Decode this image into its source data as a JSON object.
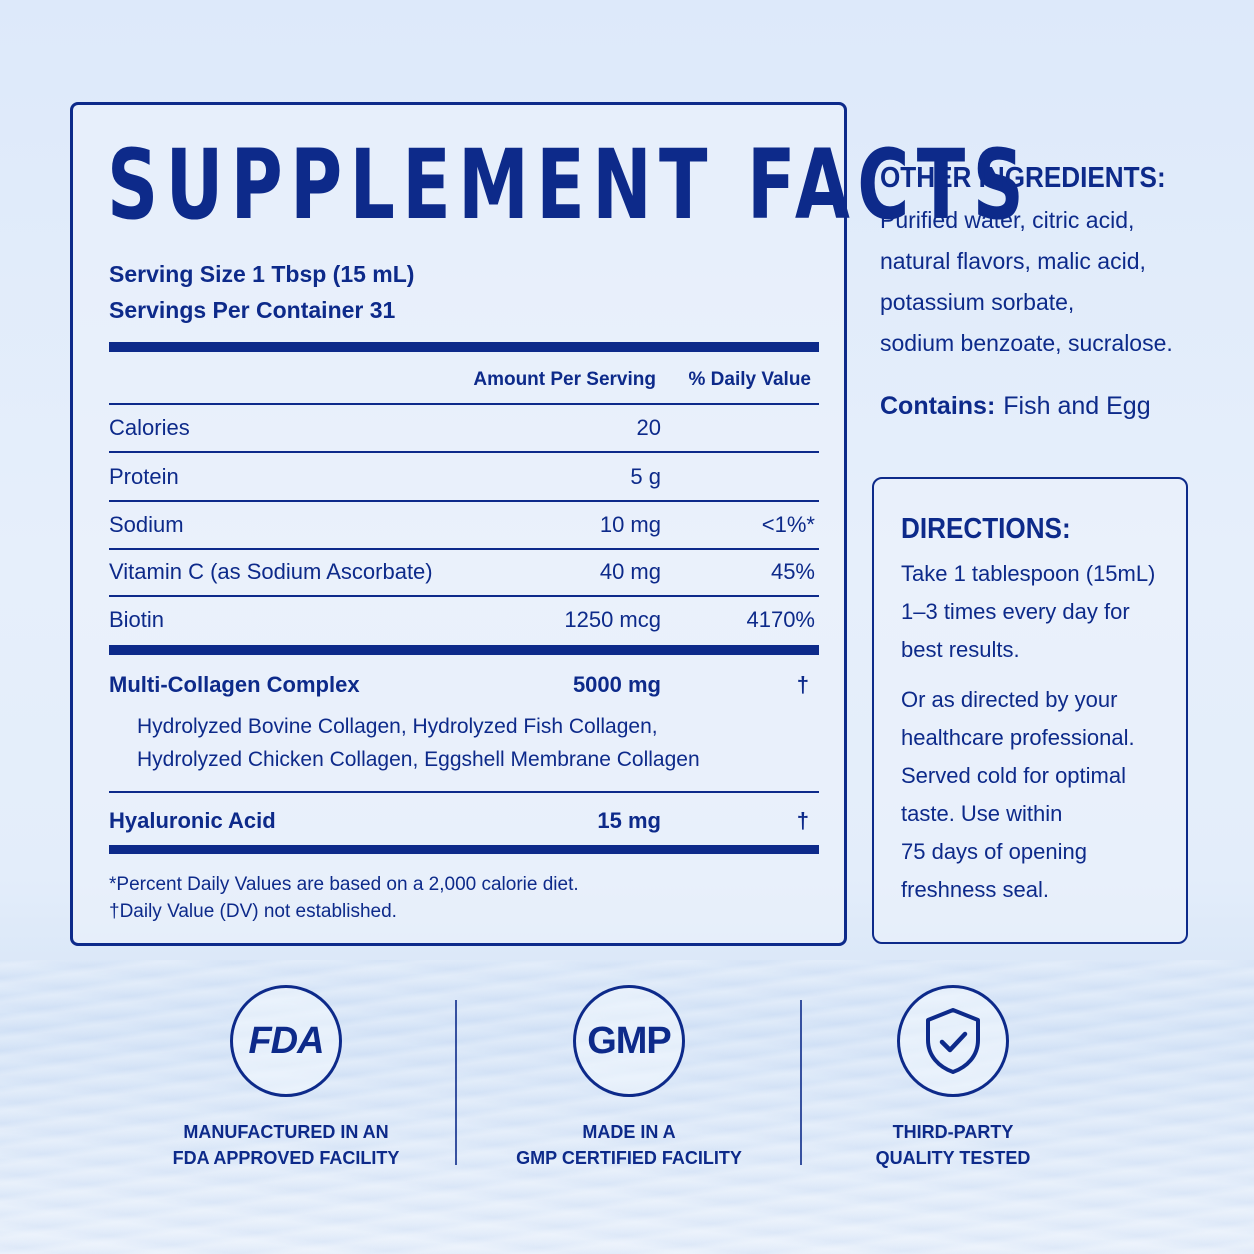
{
  "panel": {
    "title": "SUPPLEMENT FACTS",
    "serving_size": "Serving Size 1 Tbsp (15 mL)",
    "servings_per_container": "Servings Per Container 31",
    "col_amount": "Amount Per Serving",
    "col_dv": "% Daily Value",
    "rows": [
      {
        "name": "Calories",
        "amount": "20",
        "dv": ""
      },
      {
        "name": "Protein",
        "amount": "5 g",
        "dv": ""
      },
      {
        "name": "Sodium",
        "amount": "10 mg",
        "dv": "<1%*"
      },
      {
        "name": "Vitamin C (as Sodium Ascorbate)",
        "amount": "40 mg",
        "dv": "45%"
      },
      {
        "name": "Biotin",
        "amount": "1250 mcg",
        "dv": "4170%"
      }
    ],
    "collagen": {
      "name": "Multi-Collagen Complex",
      "amount": "5000 mg",
      "dv": "†",
      "sub_line1": "Hydrolyzed Bovine Collagen, Hydrolyzed Fish Collagen,",
      "sub_line2": "Hydrolyzed Chicken Collagen, Eggshell Membrane Collagen"
    },
    "hyaluronic": {
      "name": "Hyaluronic Acid",
      "amount": "15 mg",
      "dv": "†"
    },
    "footnote1": "*Percent Daily Values are based on a 2,000 calorie diet.",
    "footnote2": "†Daily Value (DV) not established."
  },
  "other": {
    "heading": "OTHER INGREDIENTS:",
    "lines": [
      "Purified water, citric acid,",
      "natural flavors, malic acid,",
      "potassium sorbate,",
      "sodium benzoate, sucralose."
    ],
    "contains_label": "Contains:",
    "contains_value": "Fish and Egg"
  },
  "directions": {
    "heading": "DIRECTIONS:",
    "p1": [
      "Take 1 tablespoon (15mL)",
      "1–3 times every day for",
      "best results."
    ],
    "p2": [
      "Or as directed by your",
      "healthcare professional.",
      "Served cold for optimal",
      "taste. Use within",
      "75 days of opening",
      "freshness seal."
    ]
  },
  "badges": [
    {
      "icon": "fda-icon",
      "icon_text": "FDA",
      "line1": "MANUFACTURED IN AN",
      "line2": "FDA APPROVED FACILITY"
    },
    {
      "icon": "gmp-icon",
      "icon_text": "GMP",
      "line1": "MADE IN A",
      "line2": "GMP CERTIFIED FACILITY"
    },
    {
      "icon": "shield-check-icon",
      "icon_text": "",
      "line1": "THIRD-PARTY",
      "line2": "QUALITY TESTED"
    }
  ],
  "colors": {
    "primary": "#0d2a8a",
    "background": "#e3edfa"
  }
}
